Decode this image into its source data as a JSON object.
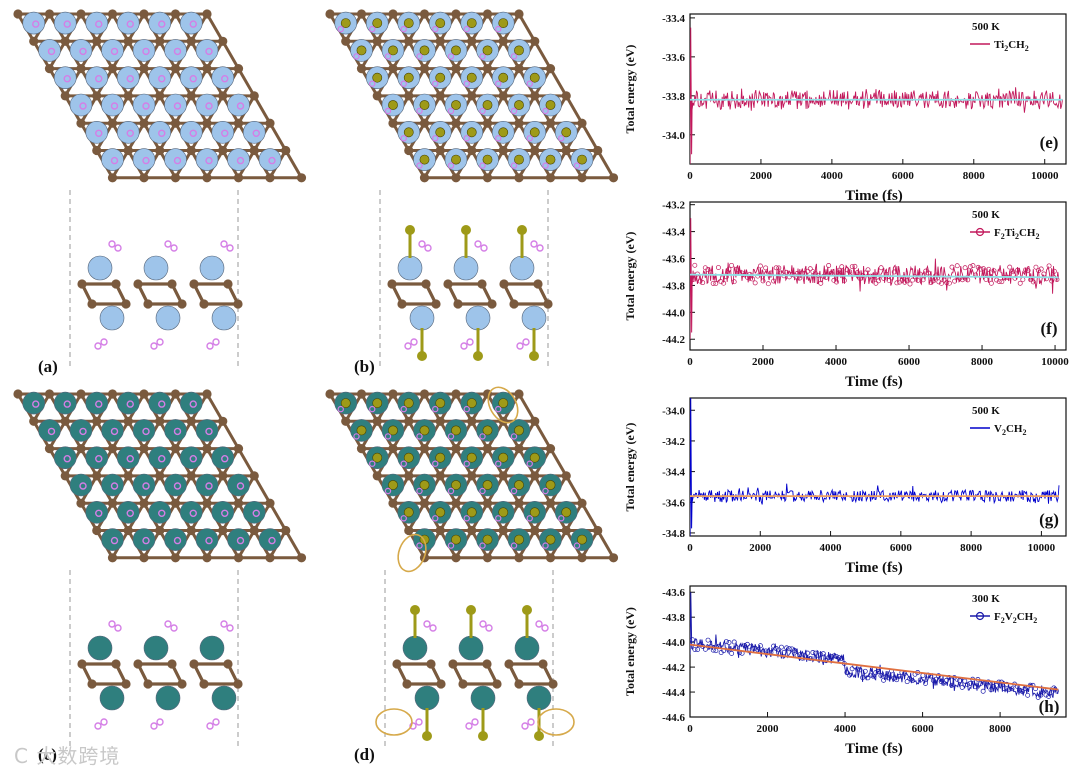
{
  "figure": {
    "panels": {
      "a": "(a)",
      "b": "(b)",
      "c": "(c)",
      "d": "(d)"
    },
    "colors": {
      "carbon": "#7a5a3e",
      "titanium": "#9ec4ea",
      "vanadium": "#2f7f7e",
      "hydrogen": "#d47ee6",
      "fluorine": "#9e9a18",
      "highlight": "#d6a94a",
      "cell_line": "#9a9a9a"
    },
    "watermark": "C 大数跨境"
  },
  "chart_data": [
    {
      "type": "line",
      "panel": "(e)",
      "temperature": "500 K",
      "series": [
        {
          "name": "Ti2CH2",
          "color": "#c2185b",
          "marker": "line",
          "mean": -33.82,
          "noise": 0.05,
          "start_spike": [
            -34.15,
            -33.45
          ]
        }
      ],
      "legend_main": "Ti",
      "legend_sub1": "2",
      "legend_mid": "CH",
      "legend_sub2": "2",
      "xlim": [
        0,
        10600
      ],
      "ylim": [
        -34.15,
        -33.38
      ],
      "xticks": [
        0,
        2000,
        4000,
        6000,
        8000,
        10000
      ],
      "yticks": [
        -34.0,
        -33.8,
        -33.6,
        -33.4
      ],
      "ytick_labels": [
        "-34.0",
        "-33.8",
        "-33.6",
        "-33.4"
      ],
      "xlabel": "Time (fs)",
      "ylabel": "Total energy (eV)",
      "fit": {
        "from": [
          0,
          -33.82
        ],
        "to": [
          10500,
          -33.82
        ],
        "color": "#8fe3e8"
      }
    },
    {
      "type": "line",
      "panel": "(f)",
      "temperature": "500 K",
      "series": [
        {
          "name": "F2Ti2CH2",
          "color": "#c2185b",
          "marker": "circle",
          "mean": -43.72,
          "noise": 0.07,
          "start_spike": [
            -44.2,
            -43.3
          ]
        }
      ],
      "legend_main": "F",
      "legend_sub1": "2",
      "legend_mid": "Ti",
      "legend_sub2": "2",
      "legend_end": "CH",
      "legend_sub3": "2",
      "xlim": [
        0,
        10300
      ],
      "ylim": [
        -44.28,
        -43.18
      ],
      "xticks": [
        0,
        2000,
        4000,
        6000,
        8000,
        10000
      ],
      "yticks": [
        -44.2,
        -44.0,
        -43.8,
        -43.6,
        -43.4,
        -43.2
      ],
      "ytick_labels": [
        "-44.2",
        "-44.0",
        "-43.8",
        "-43.6",
        "-43.4",
        "-43.2"
      ],
      "xlabel": "Time (fs)",
      "ylabel": "Total energy (eV)",
      "fit": {
        "from": [
          0,
          -43.72
        ],
        "to": [
          10100,
          -43.74
        ],
        "color": "#8fe3e8"
      }
    },
    {
      "type": "line",
      "panel": "(g)",
      "temperature": "500 K",
      "series": [
        {
          "name": "V2CH2",
          "color": "#0000cc",
          "marker": "line",
          "mean": -34.56,
          "noise": 0.04,
          "start_spike": [
            -34.82,
            -33.9
          ]
        }
      ],
      "legend_main": "V",
      "legend_sub1": "2",
      "legend_mid": "CH",
      "legend_sub2": "2",
      "xlim": [
        0,
        10700
      ],
      "ylim": [
        -34.82,
        -33.92
      ],
      "xticks": [
        0,
        2000,
        4000,
        6000,
        8000,
        10000
      ],
      "yticks": [
        -34.8,
        -34.6,
        -34.4,
        -34.2,
        -34.0
      ],
      "ytick_labels": [
        "-34.8",
        "-34.6",
        "-34.4",
        "-34.2",
        "-34.0"
      ],
      "xlabel": "Time (fs)",
      "ylabel": "Total energy (eV)",
      "fit": {
        "from": [
          0,
          -34.56
        ],
        "to": [
          10500,
          -34.56
        ],
        "color": "#f0a060"
      }
    },
    {
      "type": "line",
      "panel": "(h)",
      "temperature": "300 K",
      "series": [
        {
          "name": "F2V2CH2",
          "color": "#1a1aaa",
          "marker": "circle",
          "mean_start": -44.05,
          "mean_end": -44.36,
          "noise": 0.05,
          "start_spike": [
            -44.1,
            -43.6
          ]
        }
      ],
      "legend_main": "F",
      "legend_sub1": "2",
      "legend_mid": "V",
      "legend_sub2": "2",
      "legend_end": "CH",
      "legend_sub3": "2",
      "xlim": [
        0,
        9700
      ],
      "ylim": [
        -44.6,
        -43.55
      ],
      "xticks": [
        0,
        2000,
        4000,
        6000,
        8000
      ],
      "yticks": [
        -44.6,
        -44.4,
        -44.2,
        -44.0,
        -43.8,
        -43.6
      ],
      "ytick_labels": [
        "-44.6",
        "-44.4",
        "-44.2",
        "-44.0",
        "-43.8",
        "-43.6"
      ],
      "xlabel": "Time (fs)",
      "ylabel": "Total energy (eV)",
      "fit": {
        "from": [
          0,
          -44.02
        ],
        "to": [
          9500,
          -44.38
        ],
        "color": "#e07040"
      }
    }
  ]
}
